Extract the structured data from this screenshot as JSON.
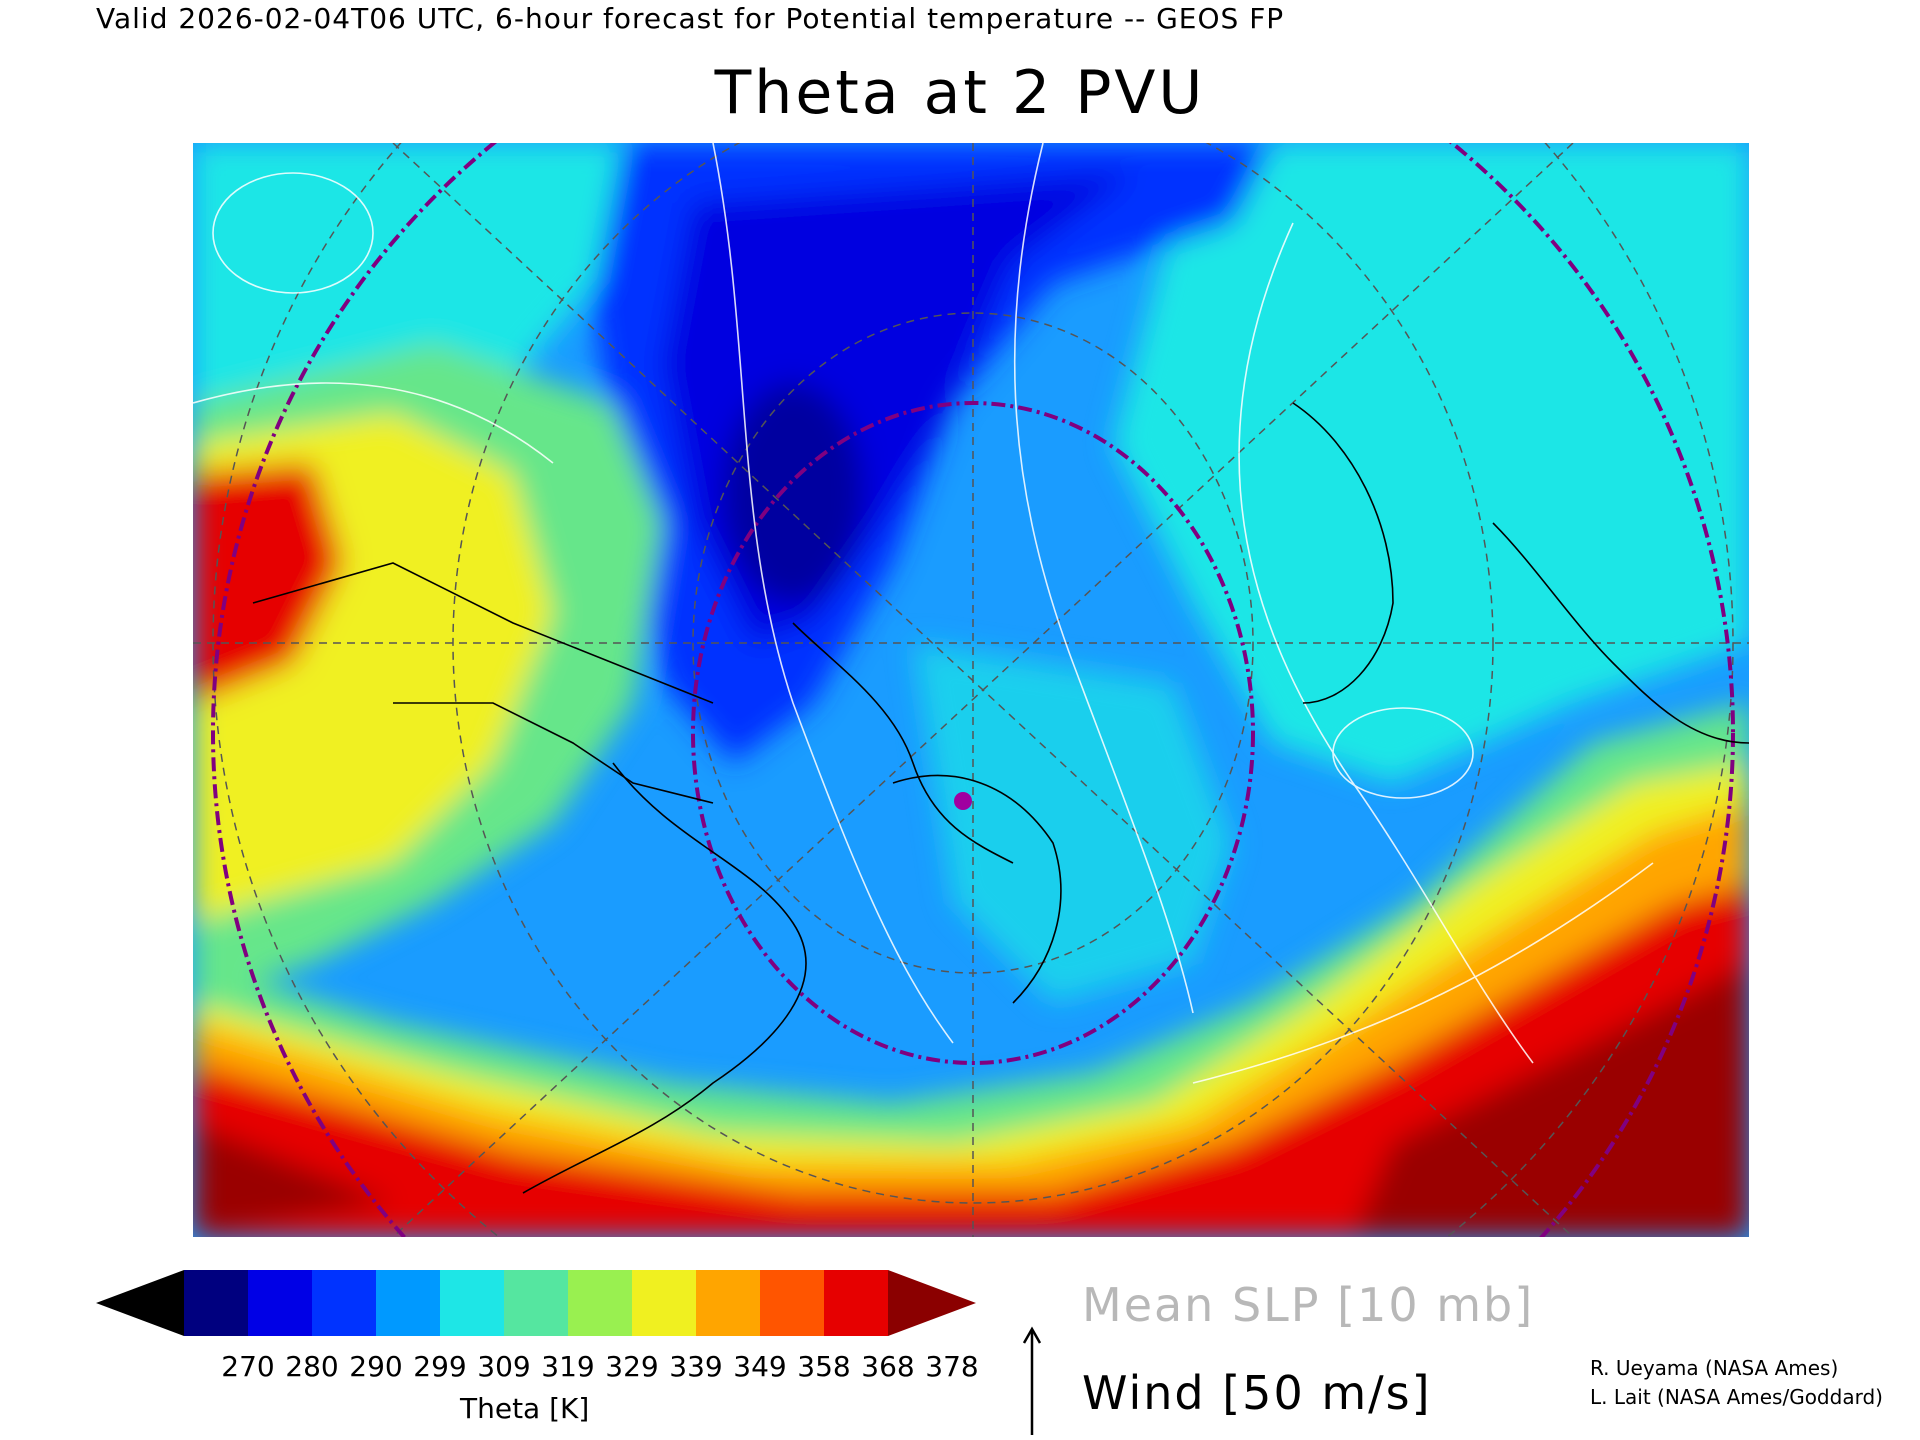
{
  "header": {
    "valid_line": "Valid 2026-02-04T06 UTC, 6-hour forecast for Potential temperature -- GEOS FP",
    "title": "Theta at 2 PVU"
  },
  "map": {
    "description_icon": "polar-stereographic-map-north-atlantic",
    "background_ocean": "#1e90ff",
    "colors": {
      "cold_core": "#0000e0",
      "dark_core": "#000080",
      "mid": "#1aa0ff",
      "cyan": "#1ee6e6",
      "green": "#66e68a",
      "yellow": "#f0f020",
      "orange": "#ffa500",
      "red": "#e60000",
      "darkred": "#9a0000",
      "grid": "#555555",
      "circle": "#800080",
      "isobar": "#ffffff"
    },
    "marker": "circle-marker"
  },
  "colorbar": {
    "colors": [
      "#000000",
      "#00007f",
      "#0000e6",
      "#0033ff",
      "#0099ff",
      "#1ee6e6",
      "#55e6a0",
      "#99f050",
      "#f0f020",
      "#ffa500",
      "#ff5500",
      "#e60000",
      "#8b0000"
    ],
    "ticks": [
      "270",
      "280",
      "290",
      "299",
      "309",
      "319",
      "329",
      "339",
      "349",
      "358",
      "368",
      "378"
    ],
    "label": "Theta [K]"
  },
  "legend": {
    "slp": "Mean SLP [10 mb]",
    "wind": "Wind [50 m/s]"
  },
  "credits": {
    "line1": "R. Ueyama (NASA Ames)",
    "line2": "L. Lait (NASA Ames/Goddard)"
  }
}
